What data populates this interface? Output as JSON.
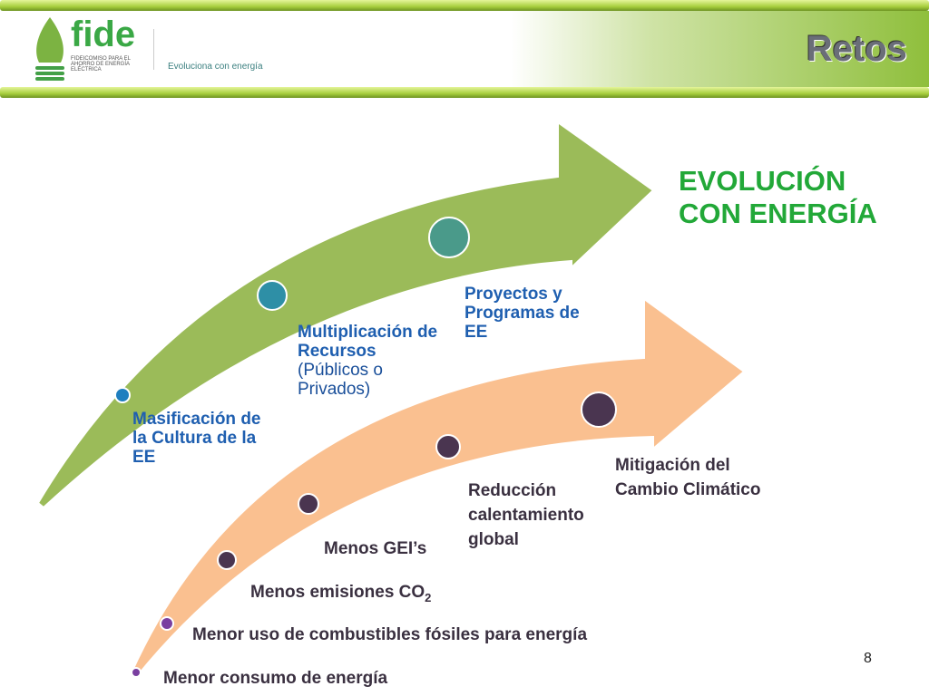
{
  "header": {
    "logo_text": "fide",
    "logo_subtitle": "FIDEICOMISO PARA EL AHORRO DE ENERGÍA ELÉCTRICA",
    "tagline": "Evoluciona con energía",
    "title": "Retos"
  },
  "headline": {
    "line1": "EVOLUCIÓN",
    "line2": "CON ENERGÍA"
  },
  "green_arrow": {
    "color": "#9bbb59",
    "items": [
      {
        "bold": "Masificación de la Cultura de la EE"
      },
      {
        "bold": "Multiplicación de Recursos",
        "normal": "(Públicos o Privados)"
      },
      {
        "bold": "Proyectos y Programas de EE"
      }
    ]
  },
  "orange_arrow": {
    "color": "#fac090",
    "items": [
      "Menor consumo de energía",
      "Menor uso de combustibles fósiles para energía",
      "Menos emisiones CO",
      "Menos GEI’s",
      "Reducción calentamiento global",
      "Mitigación del Cambio Climático"
    ],
    "co2_subscript": "2"
  },
  "page_number": "8"
}
